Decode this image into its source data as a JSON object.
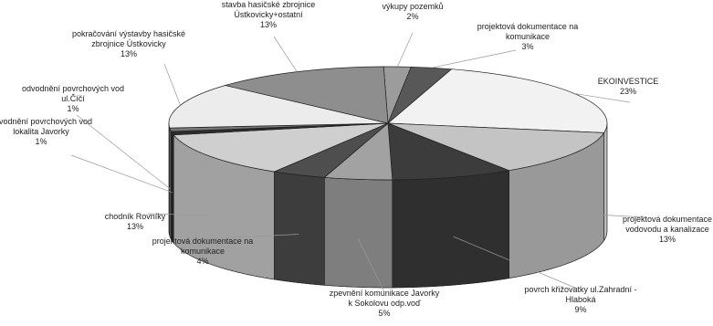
{
  "chart_data": {
    "type": "pie",
    "title": "",
    "slices": [
      {
        "label": [
          "výkupy pozemků",
          "2%"
        ],
        "value": 2,
        "color": "#9c9c9c"
      },
      {
        "label": [
          "projektová dokumentace na",
          "komunikace",
          "3%"
        ],
        "value": 3,
        "color": "#585858"
      },
      {
        "label": [
          "EKOINVESTICE",
          "23%"
        ],
        "value": 23,
        "color": "#f2f2f2"
      },
      {
        "label": [
          "projektová dokumentace",
          "vodovodu a kanalizace",
          "13%"
        ],
        "value": 13,
        "color": "#c4c4c4"
      },
      {
        "label": [
          "povrch křižovatky ul.Zahradní -",
          "Hlaboká",
          "9%"
        ],
        "value": 9,
        "color": "#3c3c3c"
      },
      {
        "label": [
          "zpevnění komunikace Javorky",
          "k Sokolovu odp.voď",
          "5%"
        ],
        "value": 5,
        "color": "#a2a2a2"
      },
      {
        "label": [
          "projektová dokumentace na",
          "komunikace",
          "4%"
        ],
        "value": 4,
        "color": "#4e4e4e"
      },
      {
        "label": [
          "chodník Rovníky",
          "13%"
        ],
        "value": 13,
        "color": "#cfcfcf"
      },
      {
        "label": [
          "odvodnění povrchových vod",
          "lokalita Javorky",
          "1%"
        ],
        "value": 1,
        "color": "#2c2c2c"
      },
      {
        "label": [
          "odvodnění povrchových vod",
          "ul.Číčí",
          "1%"
        ],
        "value": 1,
        "color": "#777777"
      },
      {
        "label": [
          "pokračování výstavby hasičské",
          "zbrojnice Ústkovicky",
          "13%"
        ],
        "value": 13,
        "color": "#ececec"
      },
      {
        "label": [
          "stavba hasičské zbrojnice",
          "Ústkovicky+ostatní",
          "13%"
        ],
        "value": 13,
        "color": "#8e8e8e"
      }
    ]
  }
}
